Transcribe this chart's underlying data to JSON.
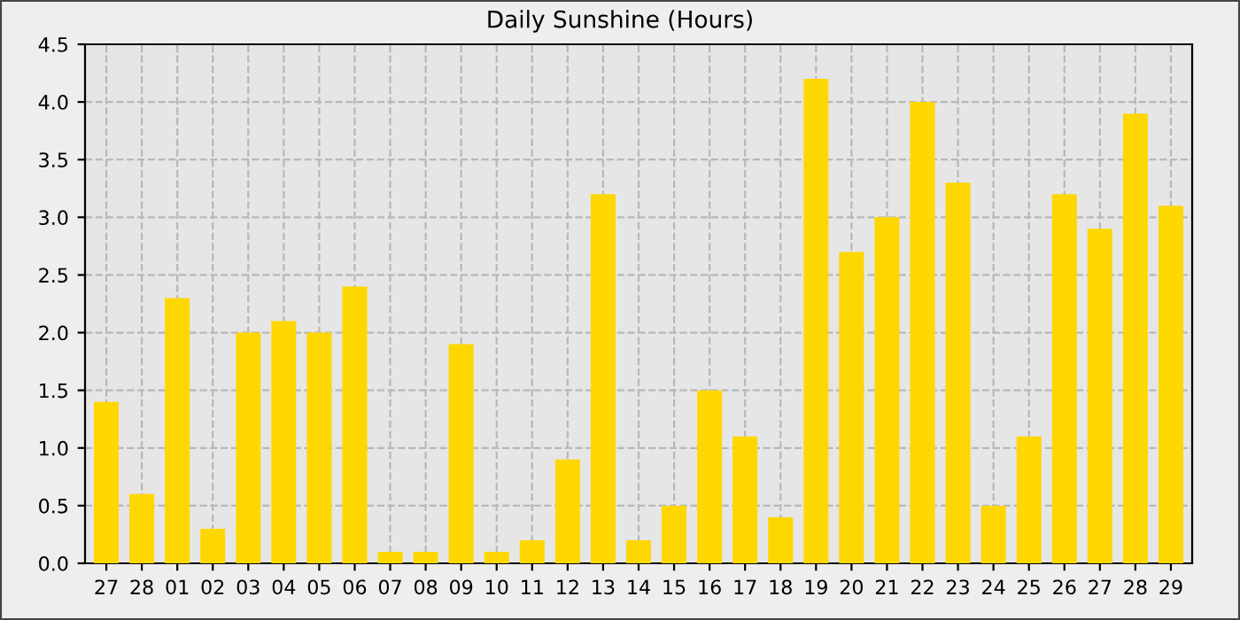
{
  "chart_data": {
    "type": "bar",
    "title": "Daily Sunshine (Hours)",
    "categories": [
      "27",
      "28",
      "01",
      "02",
      "03",
      "04",
      "05",
      "06",
      "07",
      "08",
      "09",
      "10",
      "11",
      "12",
      "13",
      "14",
      "15",
      "16",
      "17",
      "18",
      "19",
      "20",
      "21",
      "22",
      "23",
      "24",
      "25",
      "26",
      "27",
      "28",
      "29"
    ],
    "values": [
      1.4,
      0.6,
      2.3,
      0.3,
      2.0,
      2.1,
      2.0,
      2.4,
      0.1,
      0.1,
      1.9,
      0.1,
      0.2,
      0.9,
      3.2,
      0.2,
      0.5,
      1.5,
      1.1,
      0.4,
      4.2,
      2.7,
      3.0,
      4.0,
      3.3,
      0.5,
      1.1,
      3.2,
      2.9,
      3.9,
      3.1
    ],
    "color": "#ffd700",
    "ylim": [
      0,
      4.5
    ],
    "yticks": [
      {
        "value": 0,
        "label": "0.0"
      },
      0.5,
      {
        "value": 1,
        "label": "1.0"
      },
      1.5,
      {
        "value": 2,
        "label": "2.0"
      },
      2.5,
      {
        "value": 3,
        "label": "3.0"
      },
      3.5,
      {
        "value": 4,
        "label": "4.0"
      },
      4.5
    ],
    "grid": true
  }
}
